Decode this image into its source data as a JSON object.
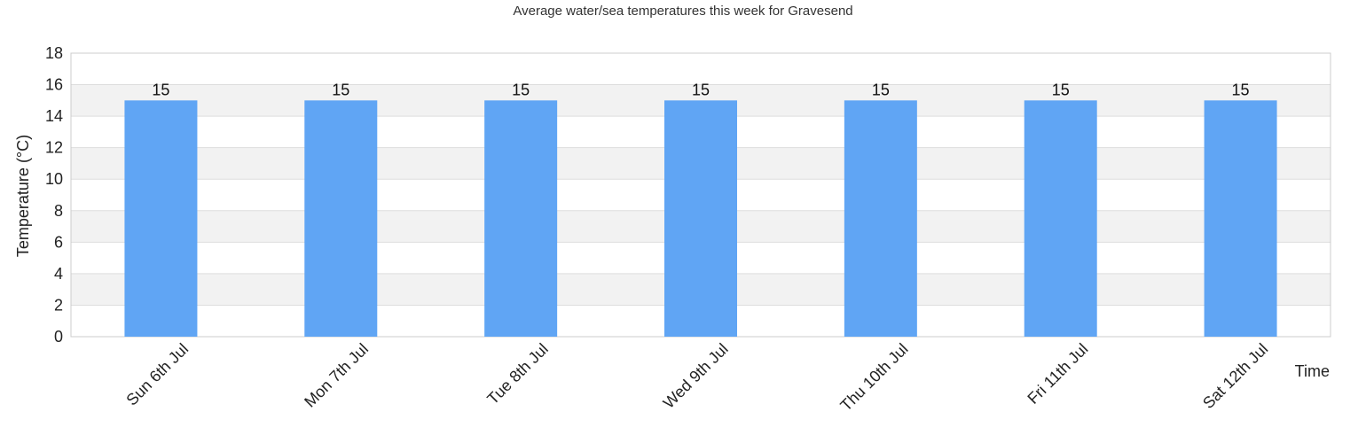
{
  "chart_data": {
    "type": "bar",
    "title": "Average water/sea temperatures this week for Gravesend",
    "xlabel": "Time",
    "ylabel": "Temperature (°C)",
    "categories": [
      "Sun 6th Jul",
      "Mon 7th Jul",
      "Tue 8th Jul",
      "Wed 9th Jul",
      "Thu 10th Jul",
      "Fri 11th Jul",
      "Sat 12th Jul"
    ],
    "values": [
      15,
      15,
      15,
      15,
      15,
      15,
      15
    ],
    "data_labels": [
      "15",
      "15",
      "15",
      "15",
      "15",
      "15",
      "15"
    ],
    "ylim": [
      0,
      18
    ],
    "yticks": [
      0,
      2,
      4,
      6,
      8,
      10,
      12,
      14,
      16,
      18
    ],
    "grid": true,
    "legend": "none",
    "colors": {
      "bar": "#60a5f4",
      "band": "#f2f2f2",
      "grid": "#dddddd",
      "frame": "#cccccc"
    }
  }
}
